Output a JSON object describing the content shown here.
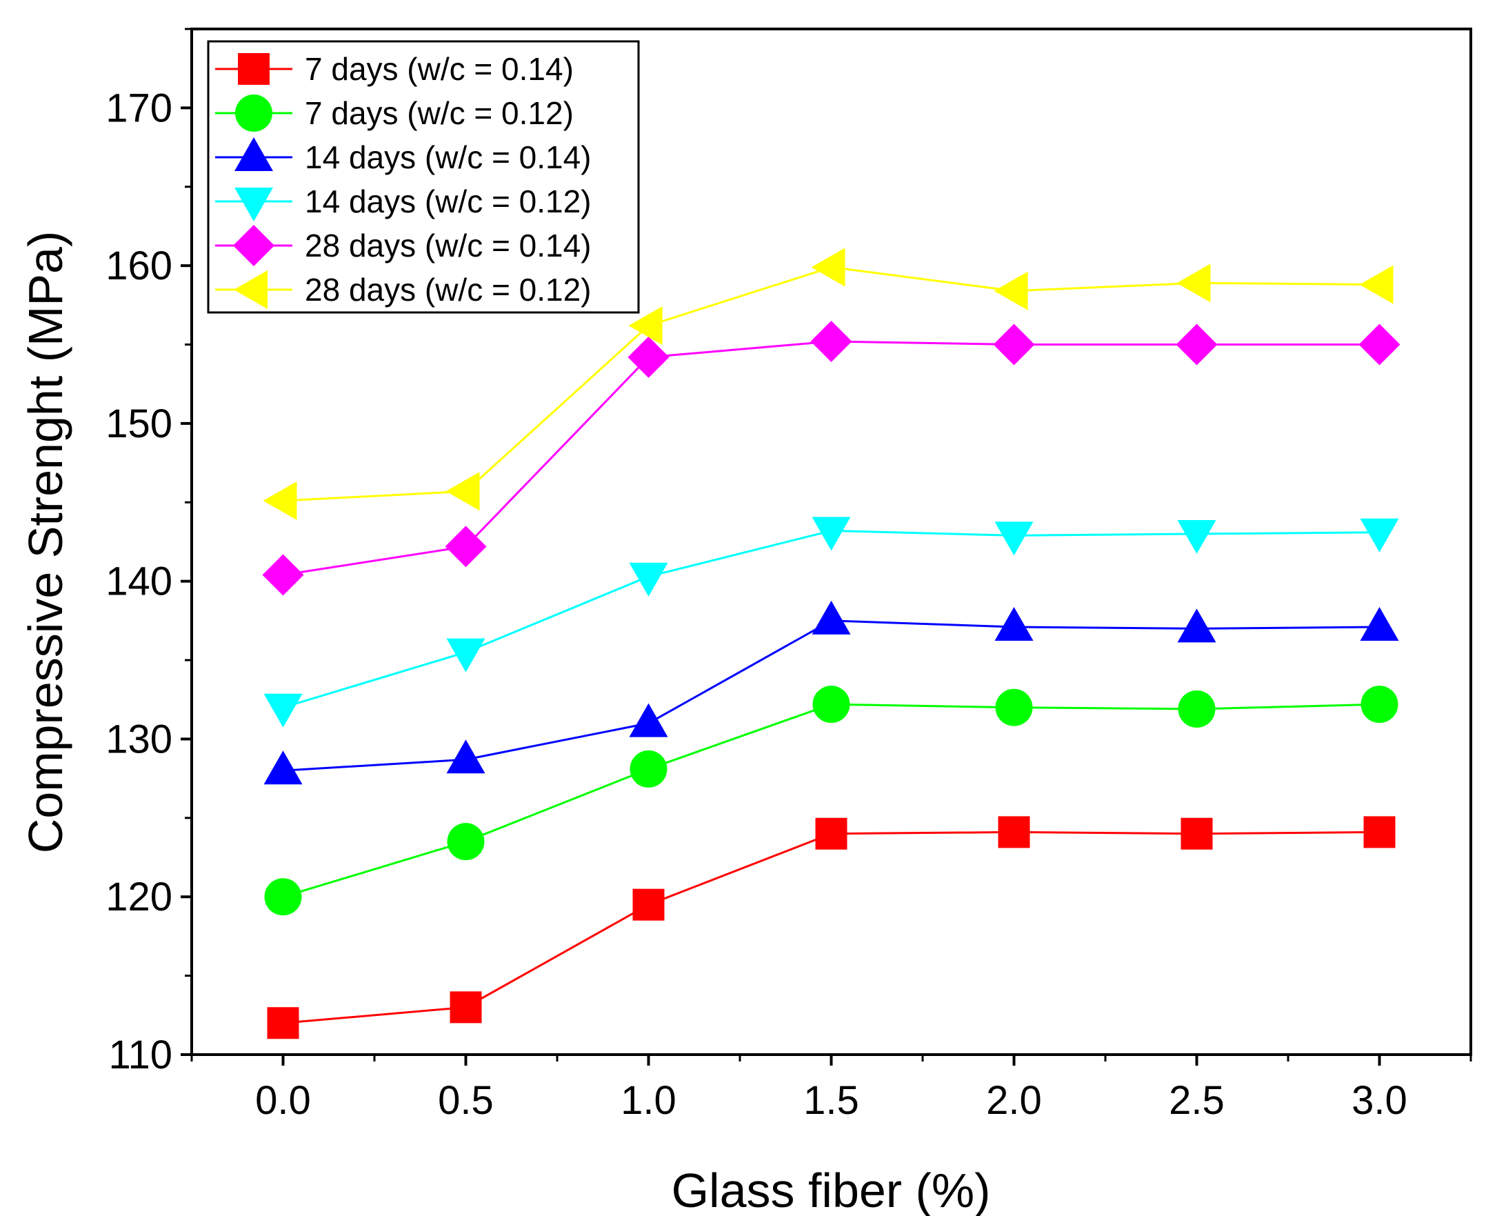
{
  "chart_data": {
    "type": "line",
    "xlabel": "Glass fiber (%)",
    "ylabel": "Compressive Strenght (MPa)",
    "xlim": [
      -0.25,
      3.25
    ],
    "ylim": [
      110,
      175
    ],
    "x": [
      0.0,
      0.5,
      1.0,
      1.5,
      2.0,
      2.5,
      3.0
    ],
    "x_ticks": [
      0.0,
      0.5,
      1.0,
      1.5,
      2.0,
      2.5,
      3.0
    ],
    "x_tick_labels": [
      "0.0",
      "0.5",
      "1.0",
      "1.5",
      "2.0",
      "2.5",
      "3.0"
    ],
    "y_ticks": [
      110,
      120,
      130,
      140,
      150,
      160,
      170
    ],
    "y_tick_labels": [
      "110",
      "120",
      "130",
      "140",
      "150",
      "160",
      "170"
    ],
    "grid": false,
    "legend_position": "top-left",
    "series": [
      {
        "name": "7 days (w/c = 0.14)",
        "color": "#ff0000",
        "marker": "square",
        "values": [
          112.0,
          113.0,
          119.5,
          124.0,
          124.1,
          124.0,
          124.1
        ]
      },
      {
        "name": "7 days (w/c = 0.12)",
        "color": "#00ff00",
        "marker": "circle",
        "values": [
          120.0,
          123.5,
          128.1,
          132.2,
          132.0,
          131.9,
          132.2
        ]
      },
      {
        "name": "14 days (w/c = 0.14)",
        "color": "#0000ff",
        "marker": "triangle-up",
        "values": [
          128.0,
          128.7,
          131.0,
          137.5,
          137.1,
          137.0,
          137.1
        ]
      },
      {
        "name": "14 days (w/c = 0.12)",
        "color": "#00ffff",
        "marker": "triangle-down",
        "values": [
          132.0,
          135.5,
          140.3,
          143.2,
          142.9,
          143.0,
          143.1
        ]
      },
      {
        "name": "28 days (w/c = 0.14)",
        "color": "#ff00ff",
        "marker": "diamond",
        "values": [
          140.4,
          142.2,
          154.2,
          155.2,
          155.0,
          155.0,
          155.0
        ]
      },
      {
        "name": "28 days (w/c = 0.12)",
        "color": "#ffff00",
        "marker": "triangle-left",
        "values": [
          145.1,
          145.7,
          156.2,
          159.9,
          158.4,
          158.9,
          158.8
        ]
      }
    ]
  }
}
